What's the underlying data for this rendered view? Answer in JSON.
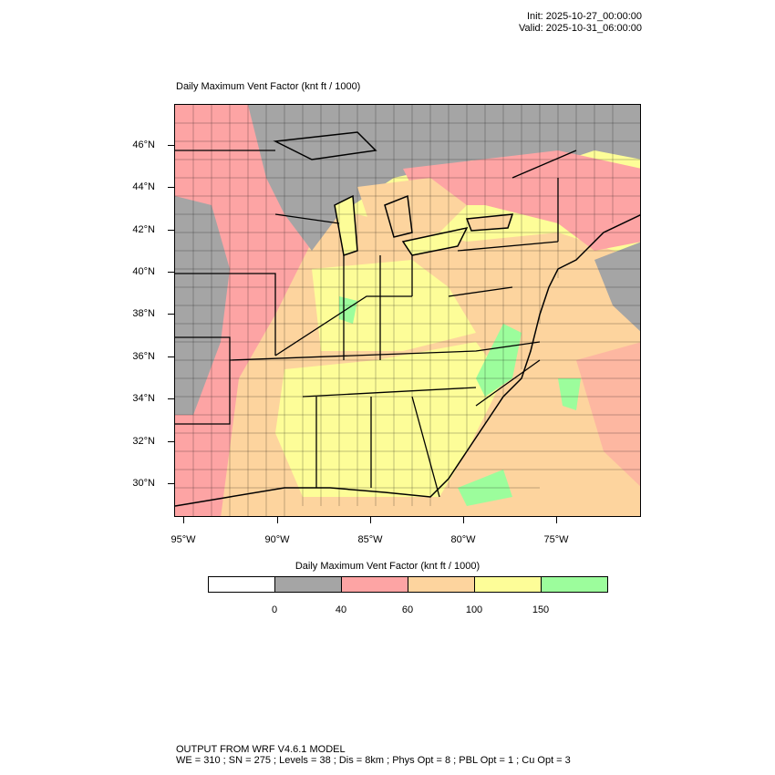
{
  "header": {
    "init": "Init: 2025-10-27_00:00:00",
    "valid": "Valid: 2025-10-31_06:00:00"
  },
  "map": {
    "title": "Daily Maximum Vent Factor   (knt ft / 1000)",
    "lat_labels": [
      "46°N",
      "44°N",
      "42°N",
      "40°N",
      "38°N",
      "36°N",
      "34°N",
      "32°N",
      "30°N"
    ],
    "lon_labels": [
      "95°W",
      "90°W",
      "85°W",
      "80°W",
      "75°W"
    ]
  },
  "colorbar": {
    "title": "Daily Maximum Vent Factor  (knt ft / 1000)",
    "labels": [
      "0",
      "40",
      "60",
      "100",
      "150"
    ],
    "colors": [
      "#ffffff",
      "#a5a5a5",
      "#fda4a4",
      "#fdd49e",
      "#fdfd98",
      "#9cfd9c"
    ]
  },
  "footer": {
    "line1": "OUTPUT FROM WRF V4.6.1 MODEL",
    "line2": "WE = 310 ; SN = 275 ; Levels = 38 ; Dis = 8km ; Phys Opt = 8 ; PBL Opt = 1 ; Cu Opt = 3"
  }
}
